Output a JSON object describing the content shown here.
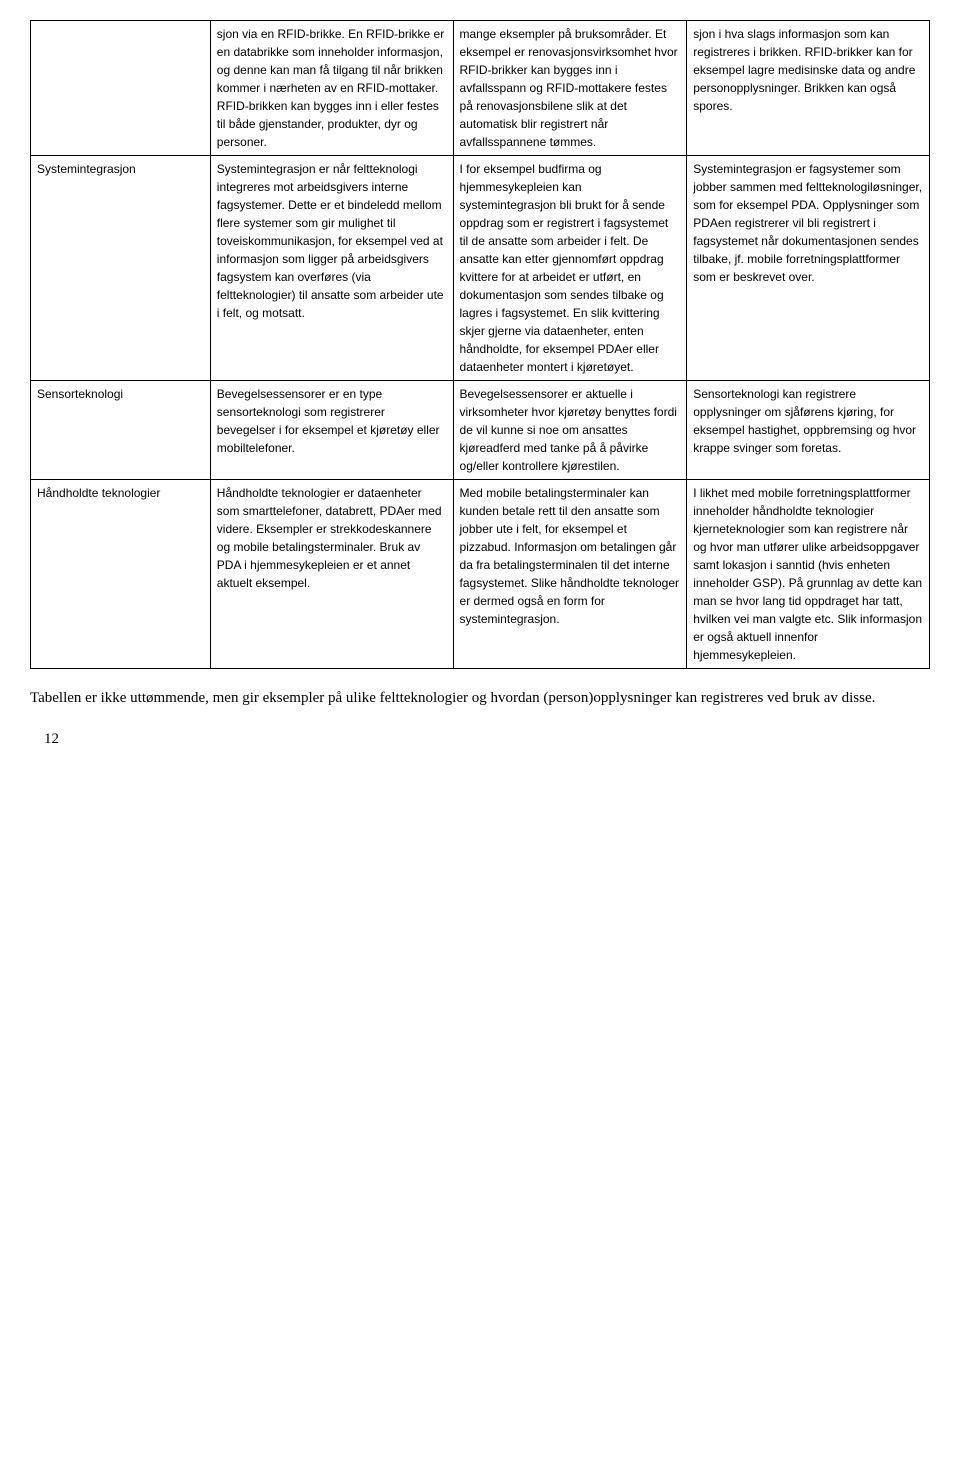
{
  "table": {
    "rows": [
      {
        "col1": "",
        "col2": "sjon via en RFID-brikke. En RFID-brikke er en databrikke som inneholder informasjon, og denne kan man få tilgang til når brikken kommer i nærheten av en RFID-mottaker. RFID-brikken kan bygges inn i eller festes til både gjenstander, produkter, dyr og personer.",
        "col3": "mange eksempler på bruksområder. Et eksempel er renovasjonsvirksomhet hvor RFID-brikker kan bygges inn i avfallsspann og RFID-mottakere festes på renovasjonsbilene slik at det automatisk blir registrert når avfallsspannene tømmes.",
        "col4": "sjon i hva slags informasjon som kan registreres i brikken. RFID-brikker kan for eksempel lagre medisinske data og andre personopplysninger. Brikken kan også spores."
      },
      {
        "col1": "Systemintegrasjon",
        "col2": "Systemintegrasjon er når feltteknologi integreres mot arbeidsgivers interne fagsystemer. Dette er et bindeledd mellom flere systemer som gir mulighet til toveiskommunikasjon, for eksempel ved at informasjon som ligger på arbeidsgivers fagsystem kan overføres (via feltteknologier) til ansatte som arbeider ute i felt, og motsatt.",
        "col3": "I for eksempel budfirma og hjemmesykepleien kan systemintegrasjon bli brukt for å sende oppdrag som er registrert i fagsystemet til de ansatte som arbeider i felt. De ansatte kan etter gjennomført oppdrag kvittere for at arbeidet er utført, en dokumentasjon som sendes tilbake og lagres i fagsystemet. En slik kvittering skjer gjerne via dataenheter, enten håndholdte, for eksempel PDAer eller dataenheter montert i kjøretøyet.",
        "col4": "Systemintegrasjon er fagsystemer som jobber sammen med feltteknologiløsninger, som for eksempel PDA. Opplysninger som PDAen registrerer vil bli registrert i fagsystemet når dokumentasjonen sendes tilbake, jf. mobile forretningsplattformer som er beskrevet over."
      },
      {
        "col1": "Sensorteknologi",
        "col2": "Bevegelsessensorer er en type sensorteknologi som registrerer bevegelser i for eksempel et kjøretøy eller mobiltelefoner.",
        "col3": "Bevegelsessensorer er aktuelle i virksomheter hvor kjøretøy benyttes fordi de vil kunne si noe om ansattes kjøreadferd med tanke på å påvirke og/eller kontrollere kjørestilen.",
        "col4": "Sensorteknologi kan registrere opplysninger om sjåførens kjøring, for eksempel hastighet, oppbremsing og hvor krappe svinger som foretas."
      },
      {
        "col1": "Håndholdte teknologier",
        "col2": "Håndholdte teknologier er dataenheter som smarttelefoner, databrett, PDAer med videre. Eksempler er strekkodeskannere og mobile betalingsterminaler. Bruk av PDA i hjemmesykepleien er et annet aktuelt eksempel.",
        "col3": "Med mobile betalingsterminaler kan kunden betale rett til den ansatte som jobber ute i felt, for eksempel et pizzabud. Informasjon om betalingen går da fra betalingsterminalen til det interne fagsystemet. Slike håndholdte teknologer er dermed også en form for systemintegrasjon.",
        "col4": "I likhet med mobile forretningsplattformer inneholder håndholdte teknologier kjerneteknologier som kan registrere når og hvor man utfører ulike arbeidsoppgaver samt lokasjon i sanntid (hvis enheten inneholder GSP).  På grunnlag av dette kan man se hvor lang tid oppdraget har tatt, hvilken vei man valgte etc. Slik informasjon er også aktuell innenfor hjemmesykepleien."
      }
    ]
  },
  "caption": "Tabellen er ikke uttømmende, men gir eksempler på ulike feltteknologier og hvordan (person)opplysninger kan registreres ved bruk av disse.",
  "page_number": "12"
}
